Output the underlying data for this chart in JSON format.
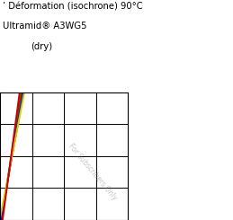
{
  "title_line1": "’ Déformation (isochrone) 90°C",
  "title_line2": "Ultramid® A3WG5",
  "title_line3": "(dry)",
  "watermark": "For Subscribers Only",
  "grid_color": "#000000",
  "background_color": "#ffffff",
  "xlim": [
    0,
    4
  ],
  "ylim": [
    0,
    4
  ],
  "nx_ticks": 4,
  "ny_ticks": 4,
  "line_colors": [
    "#ff0000",
    "#008000",
    "#0000ff",
    "#ddcc00",
    "#cc0000"
  ],
  "line_params": [
    [
      6.5,
      -0.3
    ],
    [
      6.0,
      -0.2
    ],
    [
      5.6,
      -0.1
    ],
    [
      5.2,
      0.05
    ],
    [
      7.5,
      -0.6
    ]
  ]
}
